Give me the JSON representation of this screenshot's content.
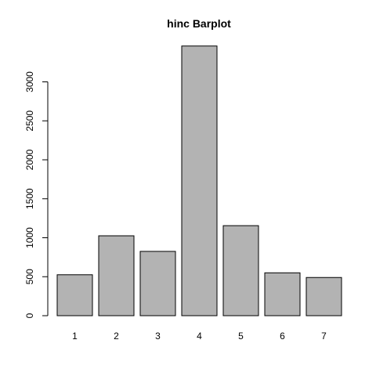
{
  "chart_data": {
    "type": "bar",
    "title": "hinc Barplot",
    "xlabel": "",
    "ylabel": "",
    "categories": [
      "1",
      "2",
      "3",
      "4",
      "5",
      "6",
      "7"
    ],
    "values": [
      525,
      1025,
      825,
      3460,
      1155,
      550,
      490
    ],
    "ylim": [
      0,
      3460
    ],
    "yticks": [
      0,
      500,
      1000,
      1500,
      2000,
      2500,
      3000
    ],
    "grid": false,
    "colors": {
      "bar_fill": "#b3b3b3",
      "bar_stroke": "#000000"
    }
  }
}
